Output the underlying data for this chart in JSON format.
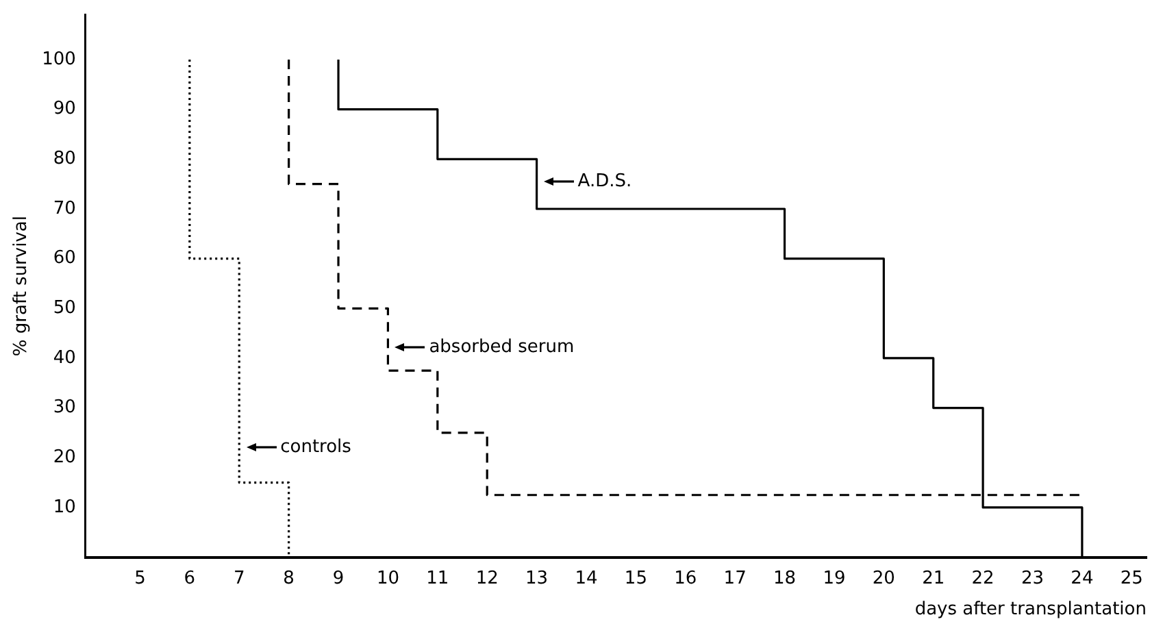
{
  "chart_data": {
    "type": "step",
    "xlabel": "days after transplantation",
    "ylabel": "% graft survival",
    "xlim": [
      3.9,
      25.3
    ],
    "xticks": [
      5,
      6,
      7,
      8,
      9,
      10,
      11,
      12,
      13,
      14,
      15,
      16,
      17,
      18,
      19,
      20,
      21,
      22,
      23,
      24,
      25
    ],
    "ylim": [
      0,
      109
    ],
    "yticks": [
      10,
      20,
      30,
      40,
      50,
      60,
      70,
      80,
      90,
      100
    ],
    "grid": false,
    "legend": false,
    "series": [
      {
        "color": "#000000",
        "line_style": "dotted",
        "x": [
          6,
          6,
          7,
          8
        ],
        "values": [
          100,
          60,
          15,
          0
        ]
      },
      {
        "color": "#000000",
        "line_style": "dashed",
        "x": [
          8,
          8,
          9,
          10,
          11,
          12,
          24
        ],
        "values": [
          100,
          75,
          50,
          37.5,
          25,
          12.5,
          12.5
        ]
      },
      {
        "color": "#000000",
        "line_style": "solid",
        "x": [
          9,
          9,
          11,
          13,
          18,
          20,
          21,
          22,
          24,
          24
        ],
        "values": [
          100,
          90,
          80,
          70,
          60,
          40,
          30,
          10,
          10,
          0
        ]
      }
    ],
    "annotations": [
      "controls",
      "absorbed serum",
      "A.D.S."
    ]
  }
}
